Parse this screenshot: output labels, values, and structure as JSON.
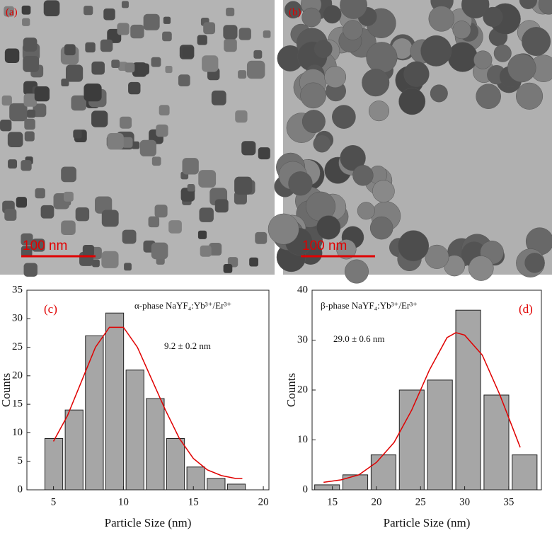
{
  "images": [
    {
      "label": "(a)",
      "scale_bar": "100 nm"
    },
    {
      "label": "(b)",
      "scale_bar": "100 nm"
    }
  ],
  "chart_data": [
    {
      "type": "histogram",
      "panel": "(c)",
      "annotation": "α-phase NaYF₄:Yb³⁺/Er³⁺",
      "result": "9.2 ± 0.2 nm",
      "xlabel": "Particle Size (nm)",
      "ylabel": "Counts",
      "color": "#a6a6a6",
      "bins": [
        4.3,
        5.75,
        7.2,
        8.65,
        10.1,
        11.55,
        13.0,
        14.45,
        15.9,
        17.35,
        18.8
      ],
      "counts": [
        9,
        14,
        27,
        31,
        21,
        16,
        9,
        4,
        2,
        1
      ],
      "fit": {
        "color": "#e00000",
        "x": [
          5,
          6,
          7,
          8,
          9,
          10,
          11,
          12,
          13,
          14,
          15,
          16,
          17,
          18,
          18.5
        ],
        "values": [
          8.5,
          13,
          19,
          25,
          28.5,
          28.5,
          25,
          19.5,
          14,
          9,
          5.5,
          3.5,
          2.5,
          2,
          2
        ]
      },
      "xlim": [
        3.1,
        20.4
      ],
      "xticks": [
        5,
        10,
        15,
        20
      ],
      "ylim": [
        0,
        35
      ],
      "yticks": [
        0,
        5,
        10,
        15,
        20,
        25,
        30,
        35
      ]
    },
    {
      "type": "histogram",
      "panel": "(d)",
      "annotation": "β-phase NaYF₄:Yb³⁺/Er³⁺",
      "result": "29.0 ± 0.6 nm",
      "xlabel": "Particle Size (nm)",
      "ylabel": "Counts",
      "color": "#a6a6a6",
      "bins": [
        12.8,
        16,
        19.2,
        22.4,
        25.6,
        28.8,
        32,
        35.2,
        38.4
      ],
      "counts": [
        1,
        3,
        7,
        20,
        22,
        36,
        19,
        7
      ],
      "fit": {
        "color": "#e00000",
        "x": [
          14,
          16,
          18,
          20,
          22,
          24,
          26,
          28,
          29,
          30,
          32,
          34,
          36.3
        ],
        "values": [
          1.5,
          2,
          3,
          5.5,
          9.5,
          16,
          24,
          30.5,
          31.5,
          31,
          27,
          19,
          8.5
        ]
      },
      "xlim": [
        12.7,
        38.7
      ],
      "xticks": [
        15,
        20,
        25,
        30,
        35
      ],
      "ylim": [
        0,
        40
      ],
      "yticks": [
        0,
        10,
        20,
        30,
        40
      ]
    }
  ]
}
